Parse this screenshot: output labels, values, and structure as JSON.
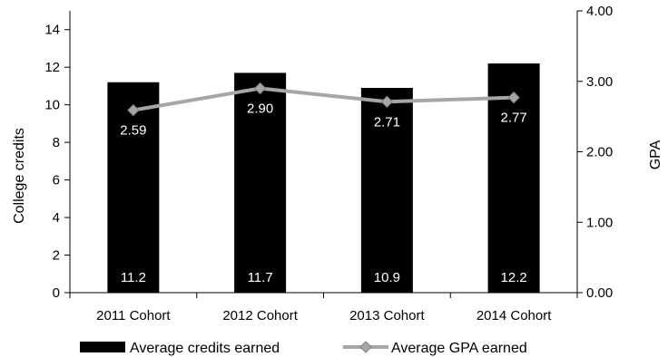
{
  "chart_data": {
    "type": "bar",
    "categories": [
      "2011 Cohort",
      "2012 Cohort",
      "2013 Cohort",
      "2014 Cohort"
    ],
    "series": [
      {
        "name": "Average credits earned",
        "type": "bar",
        "axis": "left",
        "values": [
          11.2,
          11.7,
          10.9,
          12.2
        ],
        "labels": [
          "11.2",
          "11.7",
          "10.9",
          "12.2"
        ],
        "color": "#000000"
      },
      {
        "name": "Average GPA earned",
        "type": "line",
        "axis": "right",
        "values": [
          2.59,
          2.9,
          2.71,
          2.77
        ],
        "labels": [
          "2.59",
          "2.90",
          "2.71",
          "2.77"
        ],
        "color": "#a6a6a6",
        "marker": "diamond"
      }
    ],
    "ylabel": "College credits",
    "ylim": [
      0,
      15
    ],
    "yticks": [
      "0",
      "2",
      "4",
      "6",
      "8",
      "10",
      "12",
      "14"
    ],
    "y2label": "GPA",
    "y2lim": [
      0,
      4
    ],
    "y2ticks": [
      "0.00",
      "1.00",
      "2.00",
      "3.00",
      "4.00"
    ],
    "grid": false,
    "legend_position": "bottom"
  }
}
